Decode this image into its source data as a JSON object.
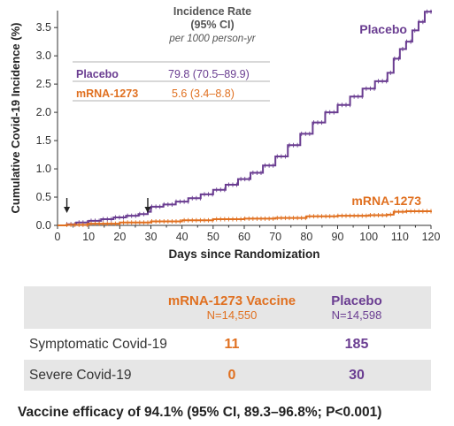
{
  "chart_data": {
    "type": "line",
    "xlabel": "Days since Randomization",
    "ylabel": "Cumulative Covid-19 Incidence (%)",
    "xlim": [
      0,
      120
    ],
    "ylim": [
      0,
      3.8
    ],
    "xticks": [
      "0",
      "10",
      "20",
      "30",
      "40",
      "50",
      "60",
      "70",
      "80",
      "90",
      "100",
      "110",
      "120"
    ],
    "yticks": [
      "0.0",
      "0.5",
      "1.0",
      "1.5",
      "2.0",
      "2.5",
      "3.0",
      "3.5"
    ],
    "series": [
      {
        "name": "Placebo",
        "color": "#6a3d91",
        "x": [
          0,
          3,
          6,
          10,
          14,
          18,
          22,
          26,
          29,
          30,
          34,
          38,
          42,
          46,
          50,
          54,
          58,
          62,
          66,
          70,
          74,
          78,
          82,
          86,
          90,
          94,
          98,
          102,
          106,
          108,
          110,
          112,
          114,
          116,
          118,
          120
        ],
        "y": [
          0.0,
          0.02,
          0.05,
          0.08,
          0.11,
          0.14,
          0.17,
          0.2,
          0.24,
          0.33,
          0.37,
          0.42,
          0.48,
          0.55,
          0.63,
          0.72,
          0.82,
          0.93,
          1.06,
          1.22,
          1.42,
          1.62,
          1.82,
          2.0,
          2.13,
          2.28,
          2.42,
          2.55,
          2.7,
          2.95,
          3.12,
          3.25,
          3.45,
          3.6,
          3.78,
          3.8
        ]
      },
      {
        "name": "mRNA-1273",
        "color": "#e07020",
        "x": [
          0,
          3,
          10,
          20,
          30,
          40,
          50,
          60,
          70,
          80,
          90,
          100,
          106,
          108,
          112,
          120
        ],
        "y": [
          0.0,
          0.01,
          0.03,
          0.05,
          0.07,
          0.09,
          0.11,
          0.12,
          0.13,
          0.16,
          0.17,
          0.18,
          0.19,
          0.24,
          0.25,
          0.26
        ]
      }
    ],
    "arrows_at_days": [
      3,
      29
    ],
    "inset": {
      "header": "Incidence Rate",
      "subheader": "(95% CI)",
      "unit_note": "per 1000 person-yr",
      "rows": [
        {
          "label": "Placebo",
          "value": "79.8 (70.5–89.9)",
          "color": "#6a3d91"
        },
        {
          "label": "mRNA-1273",
          "value": "5.6 (3.4–8.8)",
          "color": "#e07020"
        }
      ]
    }
  },
  "summary_table": {
    "columns": [
      {
        "name": "mRNA-1273 Vaccine",
        "n": "N=14,550",
        "color": "#e07020"
      },
      {
        "name": "Placebo",
        "n": "N=14,598",
        "color": "#6a3d91"
      }
    ],
    "rows": [
      {
        "label": "Symptomatic Covid-19",
        "vaccine": "11",
        "placebo": "185"
      },
      {
        "label": "Severe Covid-19",
        "vaccine": "0",
        "placebo": "30"
      }
    ]
  },
  "footer": "Vaccine efficacy of 94.1% (95% CI, 89.3–96.8%; P<0.001)"
}
